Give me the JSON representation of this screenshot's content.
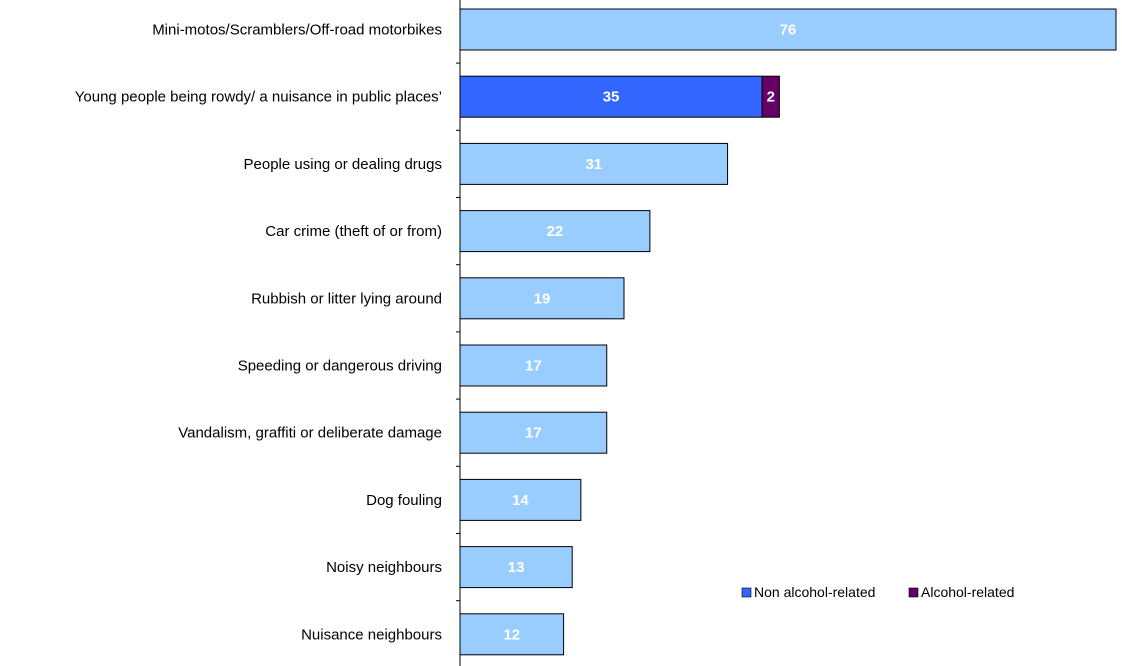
{
  "chart_data": {
    "type": "bar",
    "orientation": "horizontal",
    "stacked": true,
    "title": "",
    "xlabel": "",
    "ylabel": "",
    "categories": [
      "Mini-motos/Scramblers/Off-road motorbikes",
      "Young people being rowdy/ a nuisance in public places’",
      "People using or dealing drugs",
      "Car crime (theft of or from)",
      "Rubbish or litter lying around",
      "Speeding or dangerous driving",
      "Vandalism, graffiti or deliberate damage",
      "Dog fouling",
      "Noisy neighbours",
      "Nuisance neighbours"
    ],
    "series": [
      {
        "name": "Non alcohol-related",
        "values": [
          76,
          35,
          31,
          22,
          19,
          17,
          17,
          14,
          13,
          12
        ],
        "color": "#99ccff",
        "highlight_color": "#3366ff"
      },
      {
        "name": "Alcohol-related",
        "values": [
          0,
          2,
          0,
          0,
          0,
          0,
          0,
          0,
          0,
          0
        ],
        "color": "#660066"
      }
    ],
    "highlight_index": 1,
    "xlim": [
      0,
      76
    ],
    "grid": false,
    "legend": "bottom-right",
    "axis_color": "#000000"
  }
}
